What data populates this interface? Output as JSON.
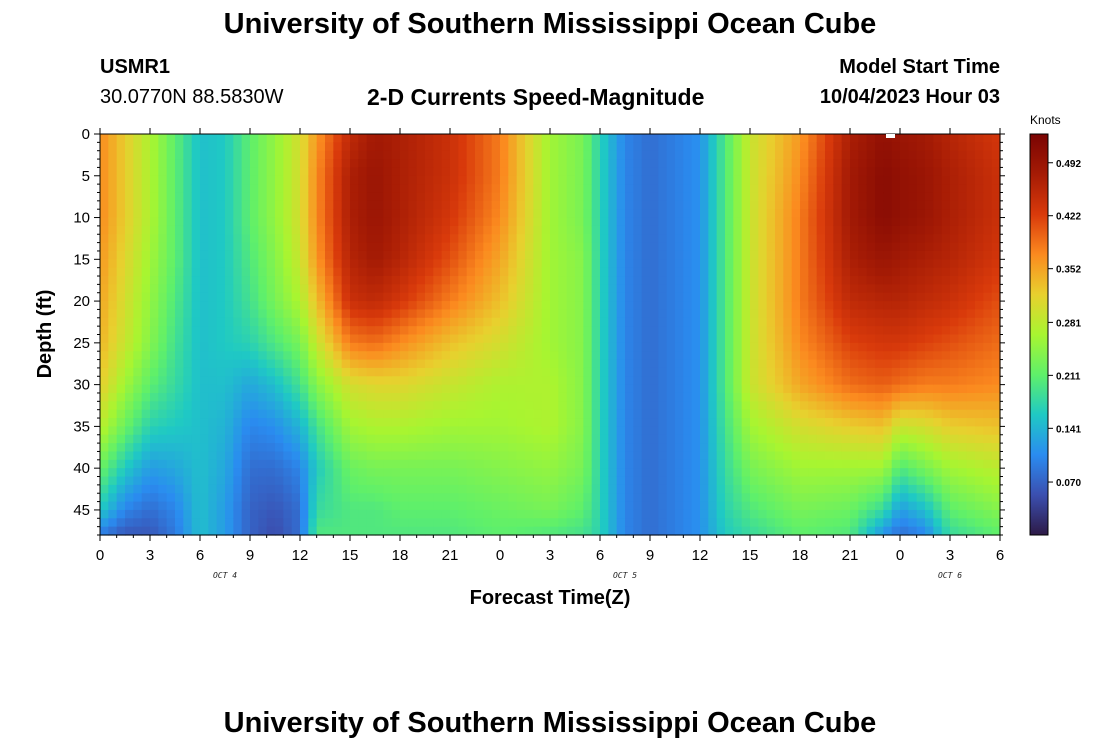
{
  "header": {
    "title": "University of Southern Mississippi Ocean Cube",
    "station": "USMR1",
    "coords": "30.0770N  88.5830W",
    "subtitle": "2-D Currents Speed-Magnitude",
    "model_label": "Model Start Time",
    "model_time": "10/04/2023 Hour 03"
  },
  "footer": {
    "title": "University of Southern Mississippi Ocean Cube"
  },
  "chart_data": {
    "type": "heatmap",
    "xlabel": "Forecast Time(Z)",
    "ylabel": "Depth (ft)",
    "x_tick_labels": [
      "0",
      "3",
      "6",
      "9",
      "12",
      "15",
      "18",
      "21",
      "0",
      "3",
      "6",
      "9",
      "12",
      "15",
      "18",
      "21",
      "0",
      "3",
      "6"
    ],
    "date_labels": [
      {
        "text": "OCT 4",
        "at_tick": 2.5
      },
      {
        "text": "OCT 5",
        "at_tick": 10.5
      },
      {
        "text": "OCT 6",
        "at_tick": 17
      }
    ],
    "y_ticks": [
      0,
      5,
      10,
      15,
      20,
      25,
      30,
      35,
      40,
      45
    ],
    "ylim": [
      0,
      48
    ],
    "xlim_hours": [
      0,
      54
    ],
    "colorbar": {
      "label": "Knots",
      "ticks": [
        "0.492",
        "0.422",
        "0.352",
        "0.281",
        "0.211",
        "0.141",
        "0.070"
      ],
      "range": [
        0.0,
        0.53
      ],
      "colors": [
        "#2d1a46",
        "#3b4fb0",
        "#2a8cf0",
        "#1fc9c4",
        "#5ff06a",
        "#a8f530",
        "#e8d02e",
        "#fb8a1f",
        "#d93a0b",
        "#a51b05",
        "#7a0403"
      ]
    },
    "speed_profiles": [
      {
        "hour": 0,
        "values": [
          0.37,
          0.37,
          0.37,
          0.36,
          0.35,
          0.34,
          0.32,
          0.28,
          0.22,
          0.16,
          0.09
        ]
      },
      {
        "hour": 1.5,
        "values": [
          0.32,
          0.32,
          0.32,
          0.31,
          0.3,
          0.29,
          0.26,
          0.22,
          0.16,
          0.1,
          0.06
        ]
      },
      {
        "hour": 3,
        "values": [
          0.27,
          0.27,
          0.27,
          0.26,
          0.25,
          0.24,
          0.21,
          0.17,
          0.12,
          0.08,
          0.06
        ]
      },
      {
        "hour": 4.5,
        "values": [
          0.21,
          0.21,
          0.21,
          0.21,
          0.2,
          0.19,
          0.18,
          0.16,
          0.13,
          0.1,
          0.09
        ]
      },
      {
        "hour": 6,
        "values": [
          0.15,
          0.15,
          0.15,
          0.15,
          0.15,
          0.15,
          0.15,
          0.15,
          0.15,
          0.15,
          0.15
        ]
      },
      {
        "hour": 7.5,
        "values": [
          0.16,
          0.16,
          0.16,
          0.16,
          0.16,
          0.16,
          0.15,
          0.14,
          0.13,
          0.12,
          0.12
        ]
      },
      {
        "hour": 9,
        "values": [
          0.21,
          0.21,
          0.21,
          0.2,
          0.19,
          0.17,
          0.13,
          0.1,
          0.08,
          0.07,
          0.07
        ]
      },
      {
        "hour": 10.5,
        "values": [
          0.25,
          0.25,
          0.25,
          0.24,
          0.23,
          0.2,
          0.15,
          0.11,
          0.08,
          0.06,
          0.05
        ]
      },
      {
        "hour": 12,
        "values": [
          0.3,
          0.3,
          0.3,
          0.29,
          0.27,
          0.23,
          0.19,
          0.14,
          0.1,
          0.08,
          0.08
        ]
      },
      {
        "hour": 13,
        "values": [
          0.36,
          0.37,
          0.37,
          0.36,
          0.33,
          0.29,
          0.24,
          0.19,
          0.16,
          0.18,
          0.2
        ]
      },
      {
        "hour": 15,
        "values": [
          0.45,
          0.47,
          0.47,
          0.46,
          0.44,
          0.38,
          0.3,
          0.26,
          0.22,
          0.2,
          0.2
        ]
      },
      {
        "hour": 16.5,
        "values": [
          0.48,
          0.49,
          0.49,
          0.48,
          0.45,
          0.39,
          0.31,
          0.27,
          0.23,
          0.2,
          0.2
        ]
      },
      {
        "hour": 18,
        "values": [
          0.47,
          0.47,
          0.47,
          0.46,
          0.43,
          0.37,
          0.31,
          0.27,
          0.23,
          0.21,
          0.2
        ]
      },
      {
        "hour": 21,
        "values": [
          0.44,
          0.44,
          0.43,
          0.41,
          0.38,
          0.33,
          0.29,
          0.26,
          0.23,
          0.21,
          0.2
        ]
      },
      {
        "hour": 24,
        "values": [
          0.38,
          0.38,
          0.37,
          0.35,
          0.33,
          0.3,
          0.27,
          0.26,
          0.24,
          0.22,
          0.21
        ]
      },
      {
        "hour": 27,
        "values": [
          0.26,
          0.26,
          0.26,
          0.26,
          0.26,
          0.26,
          0.27,
          0.27,
          0.25,
          0.23,
          0.2
        ]
      },
      {
        "hour": 29,
        "values": [
          0.23,
          0.23,
          0.23,
          0.24,
          0.24,
          0.24,
          0.24,
          0.24,
          0.23,
          0.21,
          0.19
        ]
      },
      {
        "hour": 30,
        "values": [
          0.17,
          0.17,
          0.17,
          0.17,
          0.17,
          0.17,
          0.17,
          0.17,
          0.17,
          0.17,
          0.17
        ]
      },
      {
        "hour": 31.5,
        "values": [
          0.1,
          0.1,
          0.1,
          0.1,
          0.1,
          0.1,
          0.1,
          0.1,
          0.1,
          0.1,
          0.1
        ]
      },
      {
        "hour": 33,
        "values": [
          0.08,
          0.08,
          0.08,
          0.08,
          0.08,
          0.08,
          0.08,
          0.08,
          0.08,
          0.08,
          0.08
        ]
      },
      {
        "hour": 36,
        "values": [
          0.11,
          0.11,
          0.11,
          0.11,
          0.11,
          0.11,
          0.11,
          0.11,
          0.11,
          0.11,
          0.11
        ]
      },
      {
        "hour": 37.5,
        "values": [
          0.2,
          0.2,
          0.2,
          0.2,
          0.2,
          0.2,
          0.2,
          0.19,
          0.18,
          0.17,
          0.16
        ]
      },
      {
        "hour": 39,
        "values": [
          0.29,
          0.29,
          0.29,
          0.29,
          0.29,
          0.29,
          0.29,
          0.26,
          0.23,
          0.2,
          0.18
        ]
      },
      {
        "hour": 42,
        "values": [
          0.36,
          0.37,
          0.38,
          0.38,
          0.38,
          0.37,
          0.35,
          0.3,
          0.26,
          0.23,
          0.21
        ]
      },
      {
        "hour": 45,
        "values": [
          0.47,
          0.48,
          0.48,
          0.47,
          0.45,
          0.42,
          0.39,
          0.32,
          0.26,
          0.22,
          0.2
        ]
      },
      {
        "hour": 47,
        "values": [
          0.5,
          0.51,
          0.51,
          0.49,
          0.46,
          0.43,
          0.4,
          0.33,
          0.26,
          0.18,
          0.11
        ]
      },
      {
        "hour": 48,
        "values": [
          0.49,
          0.5,
          0.5,
          0.48,
          0.46,
          0.43,
          0.39,
          0.29,
          0.2,
          0.12,
          0.08
        ]
      },
      {
        "hour": 49.5,
        "values": [
          0.48,
          0.49,
          0.49,
          0.47,
          0.45,
          0.42,
          0.38,
          0.3,
          0.23,
          0.15,
          0.1
        ]
      },
      {
        "hour": 51,
        "values": [
          0.46,
          0.47,
          0.47,
          0.46,
          0.44,
          0.41,
          0.38,
          0.32,
          0.26,
          0.21,
          0.18
        ]
      },
      {
        "hour": 54,
        "values": [
          0.43,
          0.44,
          0.44,
          0.43,
          0.41,
          0.39,
          0.37,
          0.33,
          0.28,
          0.24,
          0.21
        ]
      }
    ],
    "profile_depths": [
      0,
      5,
      10,
      15,
      20,
      25,
      30,
      35,
      40,
      45,
      48
    ]
  }
}
